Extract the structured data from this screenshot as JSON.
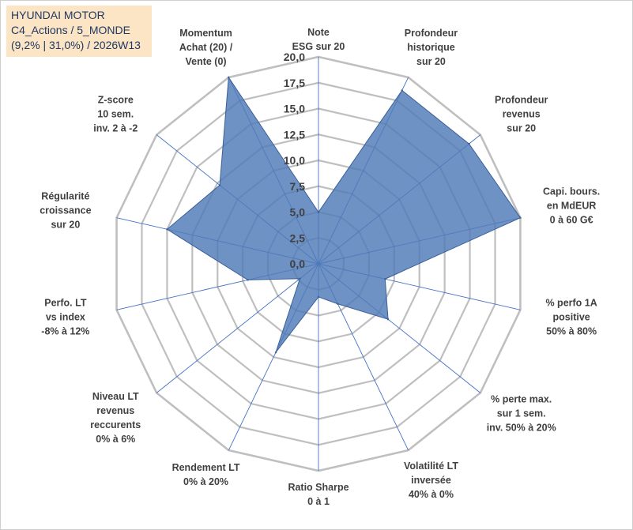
{
  "chart_data": {
    "type": "radar",
    "title_lines": [
      "HYUNDAI MOTOR",
      "C4_Actions / 5_MONDE",
      "(9,2% | 31,0%) / 2026W13"
    ],
    "axes": [
      {
        "lines": [
          "Note",
          "ESG sur 20"
        ]
      },
      {
        "lines": [
          "Profondeur",
          "historique",
          "sur 20"
        ]
      },
      {
        "lines": [
          "Profondeur",
          "revenus",
          "sur 20"
        ]
      },
      {
        "lines": [
          "Capi. bours.",
          "en MdEUR",
          "0 à 60 G€"
        ]
      },
      {
        "lines": [
          "% perfo 1A",
          "positive",
          "50% à 80%"
        ]
      },
      {
        "lines": [
          "% perte max.",
          "sur 1 sem.",
          "inv. 50% à 20%"
        ]
      },
      {
        "lines": [
          "Volatilité LT",
          "inversée",
          "40% à 0%"
        ]
      },
      {
        "lines": [
          "Ratio Sharpe",
          "0 à 1"
        ]
      },
      {
        "lines": [
          "Rendement LT",
          "0% à 20%"
        ]
      },
      {
        "lines": [
          "Niveau LT",
          "revenus",
          "reccurents",
          "0% à 6%"
        ]
      },
      {
        "lines": [
          "Perfo. LT",
          "vs index",
          "-8% à 12%"
        ]
      },
      {
        "lines": [
          "Régularité",
          "croissance",
          "sur 20"
        ]
      },
      {
        "lines": [
          "Z-score",
          "10 sem.",
          "inv. 2 à -2"
        ]
      },
      {
        "lines": [
          "Momentum",
          "Achat (20) /",
          "Vente (0)"
        ]
      }
    ],
    "values": [
      5.0,
      18.6,
      18.6,
      20.0,
      6.6,
      8.6,
      4.3,
      3.2,
      9.5,
      2.3,
      7.0,
      15.0,
      12.2,
      20.0
    ],
    "rlim": [
      0,
      20
    ],
    "ticks": [
      "0,0",
      "2,5",
      "5,0",
      "7,5",
      "10,0",
      "12,5",
      "15,0",
      "17,5",
      "20,0"
    ],
    "series_color": "#4f7ab8",
    "series_edge": "#3a5f99",
    "grid_color": "#bfbfbf",
    "spoke_color": "#4472c4"
  }
}
